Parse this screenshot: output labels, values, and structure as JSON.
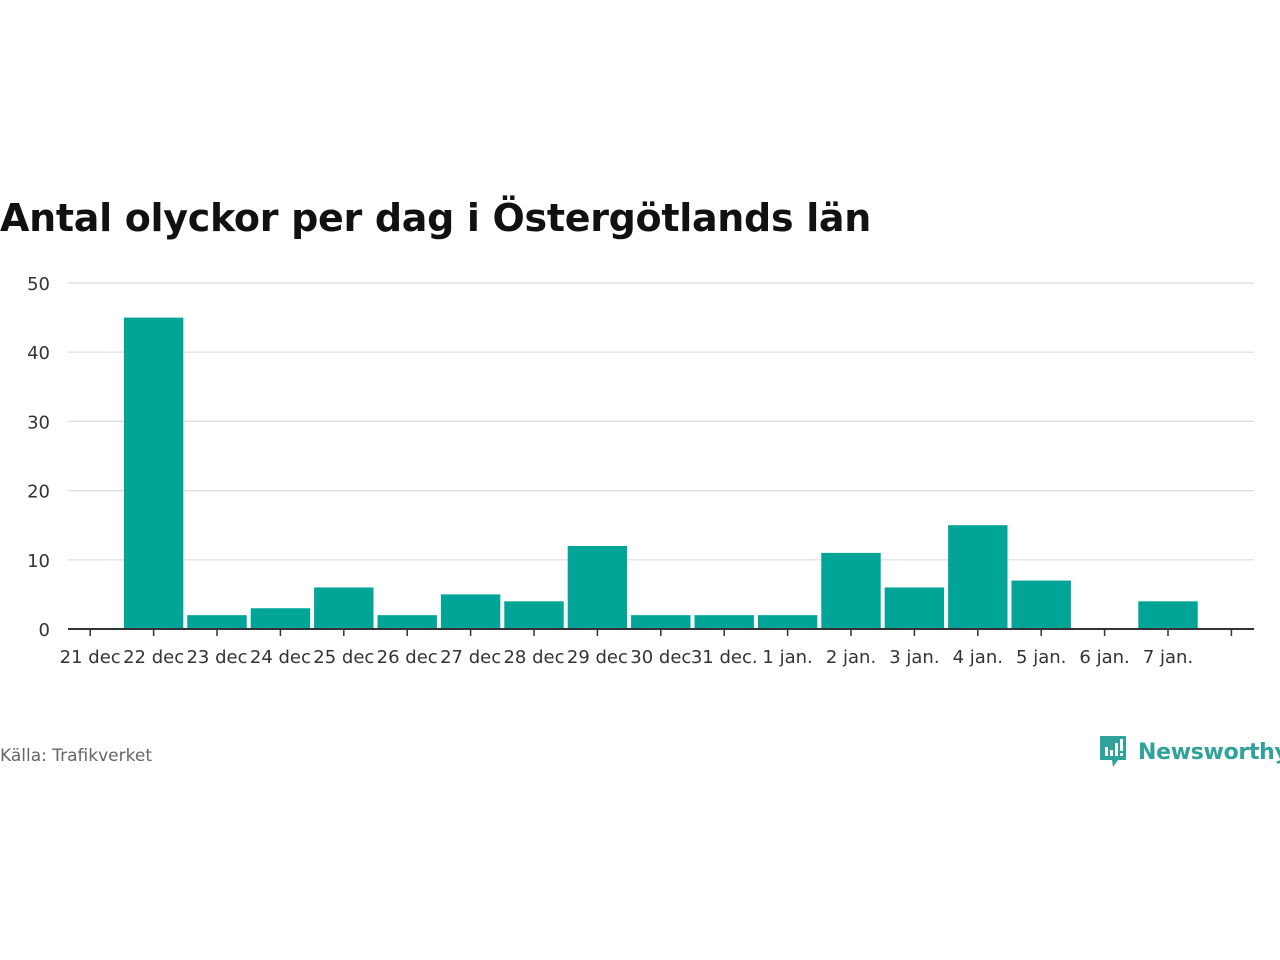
{
  "chart_data": {
    "type": "bar",
    "title": "Antal olyckor per dag i Östergötlands län",
    "categories": [
      "21 dec",
      "22 dec",
      "23 dec",
      "24 dec",
      "25 dec",
      "26 dec",
      "27 dec",
      "28 dec",
      "29 dec",
      "30 dec",
      "31 dec.",
      "1 jan.",
      "2 jan.",
      "3 jan.",
      "4 jan.",
      "5 jan.",
      "6 jan.",
      "7 jan."
    ],
    "values": [
      null,
      45,
      2,
      3,
      6,
      2,
      5,
      4,
      12,
      2,
      2,
      2,
      11,
      6,
      15,
      7,
      0,
      4
    ],
    "ylim": [
      0,
      50
    ],
    "yticks": [
      0,
      10,
      20,
      30,
      40,
      50
    ],
    "grid": true,
    "bar_color": "#00a597"
  },
  "source": "Källa: Trafikverket",
  "brand": {
    "name": "Newsworthy",
    "icon": "newsworthy-logo-icon",
    "color": "#2fa39a"
  }
}
